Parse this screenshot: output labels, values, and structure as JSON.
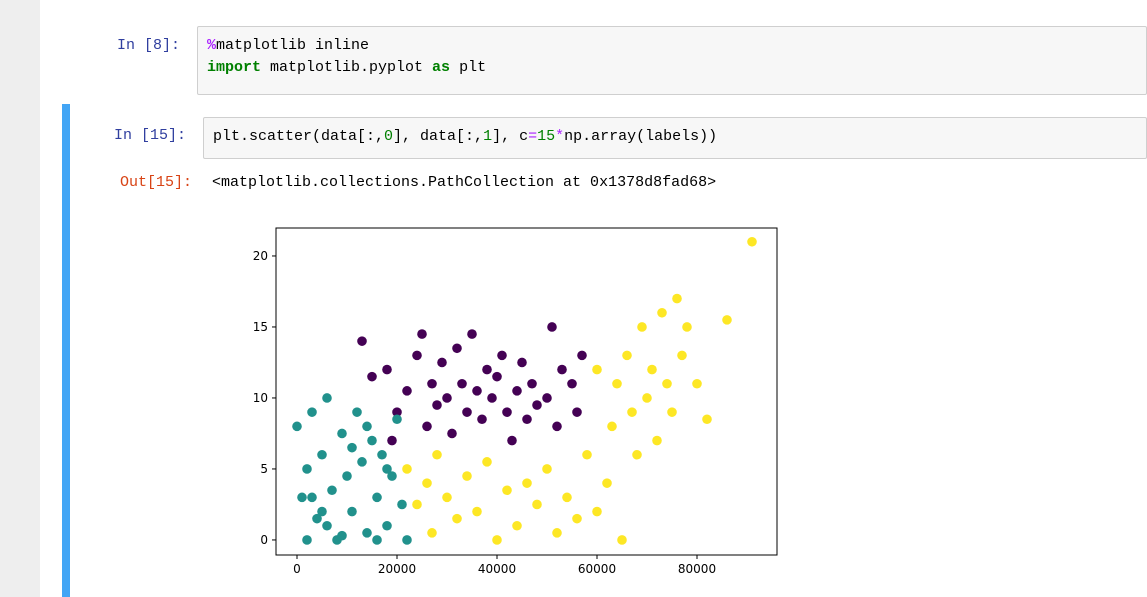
{
  "cells": [
    {
      "prompt": "In  [8]:",
      "source": [
        [
          "%",
          "matplotlib inline"
        ],
        [
          "import",
          " matplotlib.pyplot ",
          "as",
          " plt"
        ]
      ]
    },
    {
      "prompt": "In  [15]:",
      "source": [
        "plt.scatter(data[:,",
        "0",
        "], data[:,",
        "1",
        "], c",
        "=",
        "15",
        "*",
        "np.array(labels))"
      ],
      "output_prompt": "Out[15]:",
      "output_text": "<matplotlib.collections.PathCollection at 0x1378d8fad68>"
    }
  ],
  "chart_data": {
    "type": "scatter",
    "xlim": [
      -4200,
      96000
    ],
    "ylim": [
      -1.06,
      21.97
    ],
    "xticks": [
      0,
      20000,
      40000,
      60000,
      80000
    ],
    "yticks": [
      0,
      5,
      10,
      15,
      20
    ],
    "series": [
      {
        "color": "#440154",
        "x": [
          15000,
          18000,
          20000,
          22000,
          24000,
          25000,
          26000,
          27000,
          28000,
          29000,
          30000,
          31000,
          32000,
          33000,
          34000,
          35000,
          36000,
          37000,
          38000,
          39000,
          40000,
          41000,
          42000,
          43000,
          44000,
          45000,
          46000,
          47000,
          48000,
          50000,
          51000,
          52000,
          53000,
          55000,
          56000,
          13000,
          19000,
          57000
        ],
        "values": [
          11.5,
          12,
          9,
          10.5,
          13,
          14.5,
          8,
          11,
          9.5,
          12.5,
          10,
          7.5,
          13.5,
          11,
          9,
          14.5,
          10.5,
          8.5,
          12,
          10,
          11.5,
          13,
          9,
          7,
          10.5,
          12.5,
          8.5,
          11,
          9.5,
          10,
          15,
          8,
          12,
          11,
          9,
          14,
          7,
          13
        ]
      },
      {
        "color": "#21918c",
        "x": [
          0,
          1000,
          2000,
          2000,
          3000,
          4000,
          5000,
          6000,
          7000,
          8000,
          9000,
          10000,
          11000,
          12000,
          13000,
          14000,
          15000,
          16000,
          17000,
          18000,
          19000,
          20000,
          21000,
          22000,
          3000,
          6000,
          9000,
          11000,
          14000,
          16000,
          18000,
          5000
        ],
        "values": [
          8,
          3,
          5,
          0,
          9,
          1.5,
          6,
          10,
          3.5,
          0,
          7.5,
          4.5,
          2,
          9,
          5.5,
          0.5,
          7,
          3,
          6,
          1,
          4.5,
          8.5,
          2.5,
          0,
          3,
          1,
          0.3,
          6.5,
          8,
          0,
          5,
          2
        ]
      },
      {
        "color": "#fde725",
        "x": [
          22000,
          24000,
          26000,
          27000,
          28000,
          30000,
          32000,
          34000,
          36000,
          38000,
          40000,
          42000,
          44000,
          46000,
          48000,
          50000,
          52000,
          54000,
          56000,
          58000,
          60000,
          62000,
          63000,
          64000,
          65000,
          66000,
          67000,
          68000,
          69000,
          70000,
          71000,
          72000,
          73000,
          74000,
          75000,
          76000,
          77000,
          78000,
          80000,
          82000,
          86000,
          91000,
          60000
        ],
        "values": [
          5,
          2.5,
          4,
          0.5,
          6,
          3,
          1.5,
          4.5,
          2,
          5.5,
          0,
          3.5,
          1,
          4,
          2.5,
          5,
          0.5,
          3,
          1.5,
          6,
          2,
          4,
          8,
          11,
          0,
          13,
          9,
          6,
          15,
          10,
          12,
          7,
          16,
          11,
          9,
          17,
          13,
          15,
          11,
          8.5,
          15.5,
          21,
          12
        ]
      }
    ]
  }
}
